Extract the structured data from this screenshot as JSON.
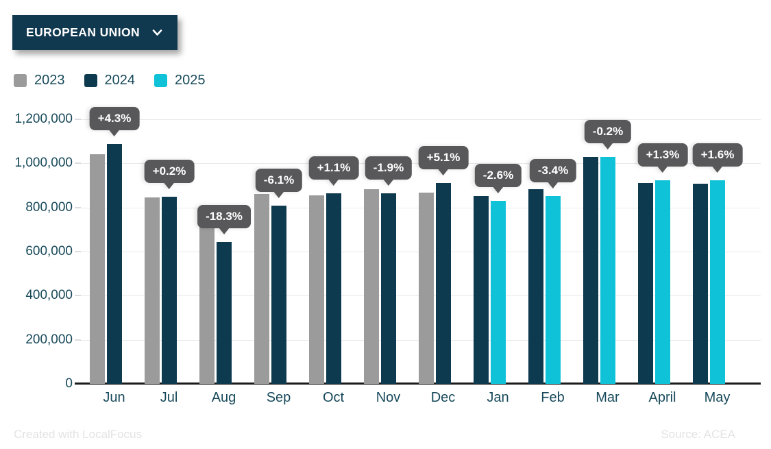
{
  "controls": {
    "region_dropdown": {
      "label": "EUROPEAN UNION"
    }
  },
  "legend": {
    "items": [
      {
        "label": "2023",
        "color": "#9b9b9b"
      },
      {
        "label": "2024",
        "color": "#0e3a50"
      },
      {
        "label": "2025",
        "color": "#10c2d8"
      }
    ]
  },
  "footer": {
    "credit": "Created with LocalFocus",
    "source": "Source:  ACEA"
  },
  "chart_data": {
    "type": "bar",
    "title": "",
    "xlabel": "",
    "ylabel": "",
    "categories": [
      "Jun",
      "Jul",
      "Aug",
      "Sep",
      "Oct",
      "Nov",
      "Dec",
      "Jan",
      "Feb",
      "Mar",
      "April",
      "May"
    ],
    "series": [
      {
        "name": "2023",
        "color": "#9b9b9b",
        "values": [
          1043000,
          846000,
          788000,
          860000,
          856000,
          882000,
          867000,
          null,
          null,
          null,
          null,
          null
        ]
      },
      {
        "name": "2024",
        "color": "#0e3a50",
        "values": [
          1088000,
          848000,
          644000,
          808000,
          865000,
          865000,
          911000,
          851000,
          882000,
          1030000,
          911000,
          908000
        ]
      },
      {
        "name": "2025",
        "color": "#10c2d8",
        "values": [
          null,
          null,
          null,
          null,
          null,
          null,
          null,
          829000,
          852000,
          1028000,
          923000,
          922000
        ]
      }
    ],
    "annotations": [
      {
        "category": "Jun",
        "label": "+4.3%"
      },
      {
        "category": "Jul",
        "label": "+0.2%"
      },
      {
        "category": "Aug",
        "label": "-18.3%"
      },
      {
        "category": "Sep",
        "label": "-6.1%"
      },
      {
        "category": "Oct",
        "label": "+1.1%"
      },
      {
        "category": "Nov",
        "label": "-1.9%"
      },
      {
        "category": "Dec",
        "label": "+5.1%"
      },
      {
        "category": "Jan",
        "label": "-2.6%"
      },
      {
        "category": "Feb",
        "label": "-3.4%"
      },
      {
        "category": "Mar",
        "label": "-0.2%"
      },
      {
        "category": "April",
        "label": "+1.3%"
      },
      {
        "category": "May",
        "label": "+1.6%"
      }
    ],
    "ylim": [
      0,
      1200000
    ],
    "ytick_labels": [
      "0",
      "200,000",
      "400,000",
      "600,000",
      "800,000",
      "1,000,000",
      "1,200,000"
    ],
    "grid": true,
    "legend_position": "top-left"
  }
}
